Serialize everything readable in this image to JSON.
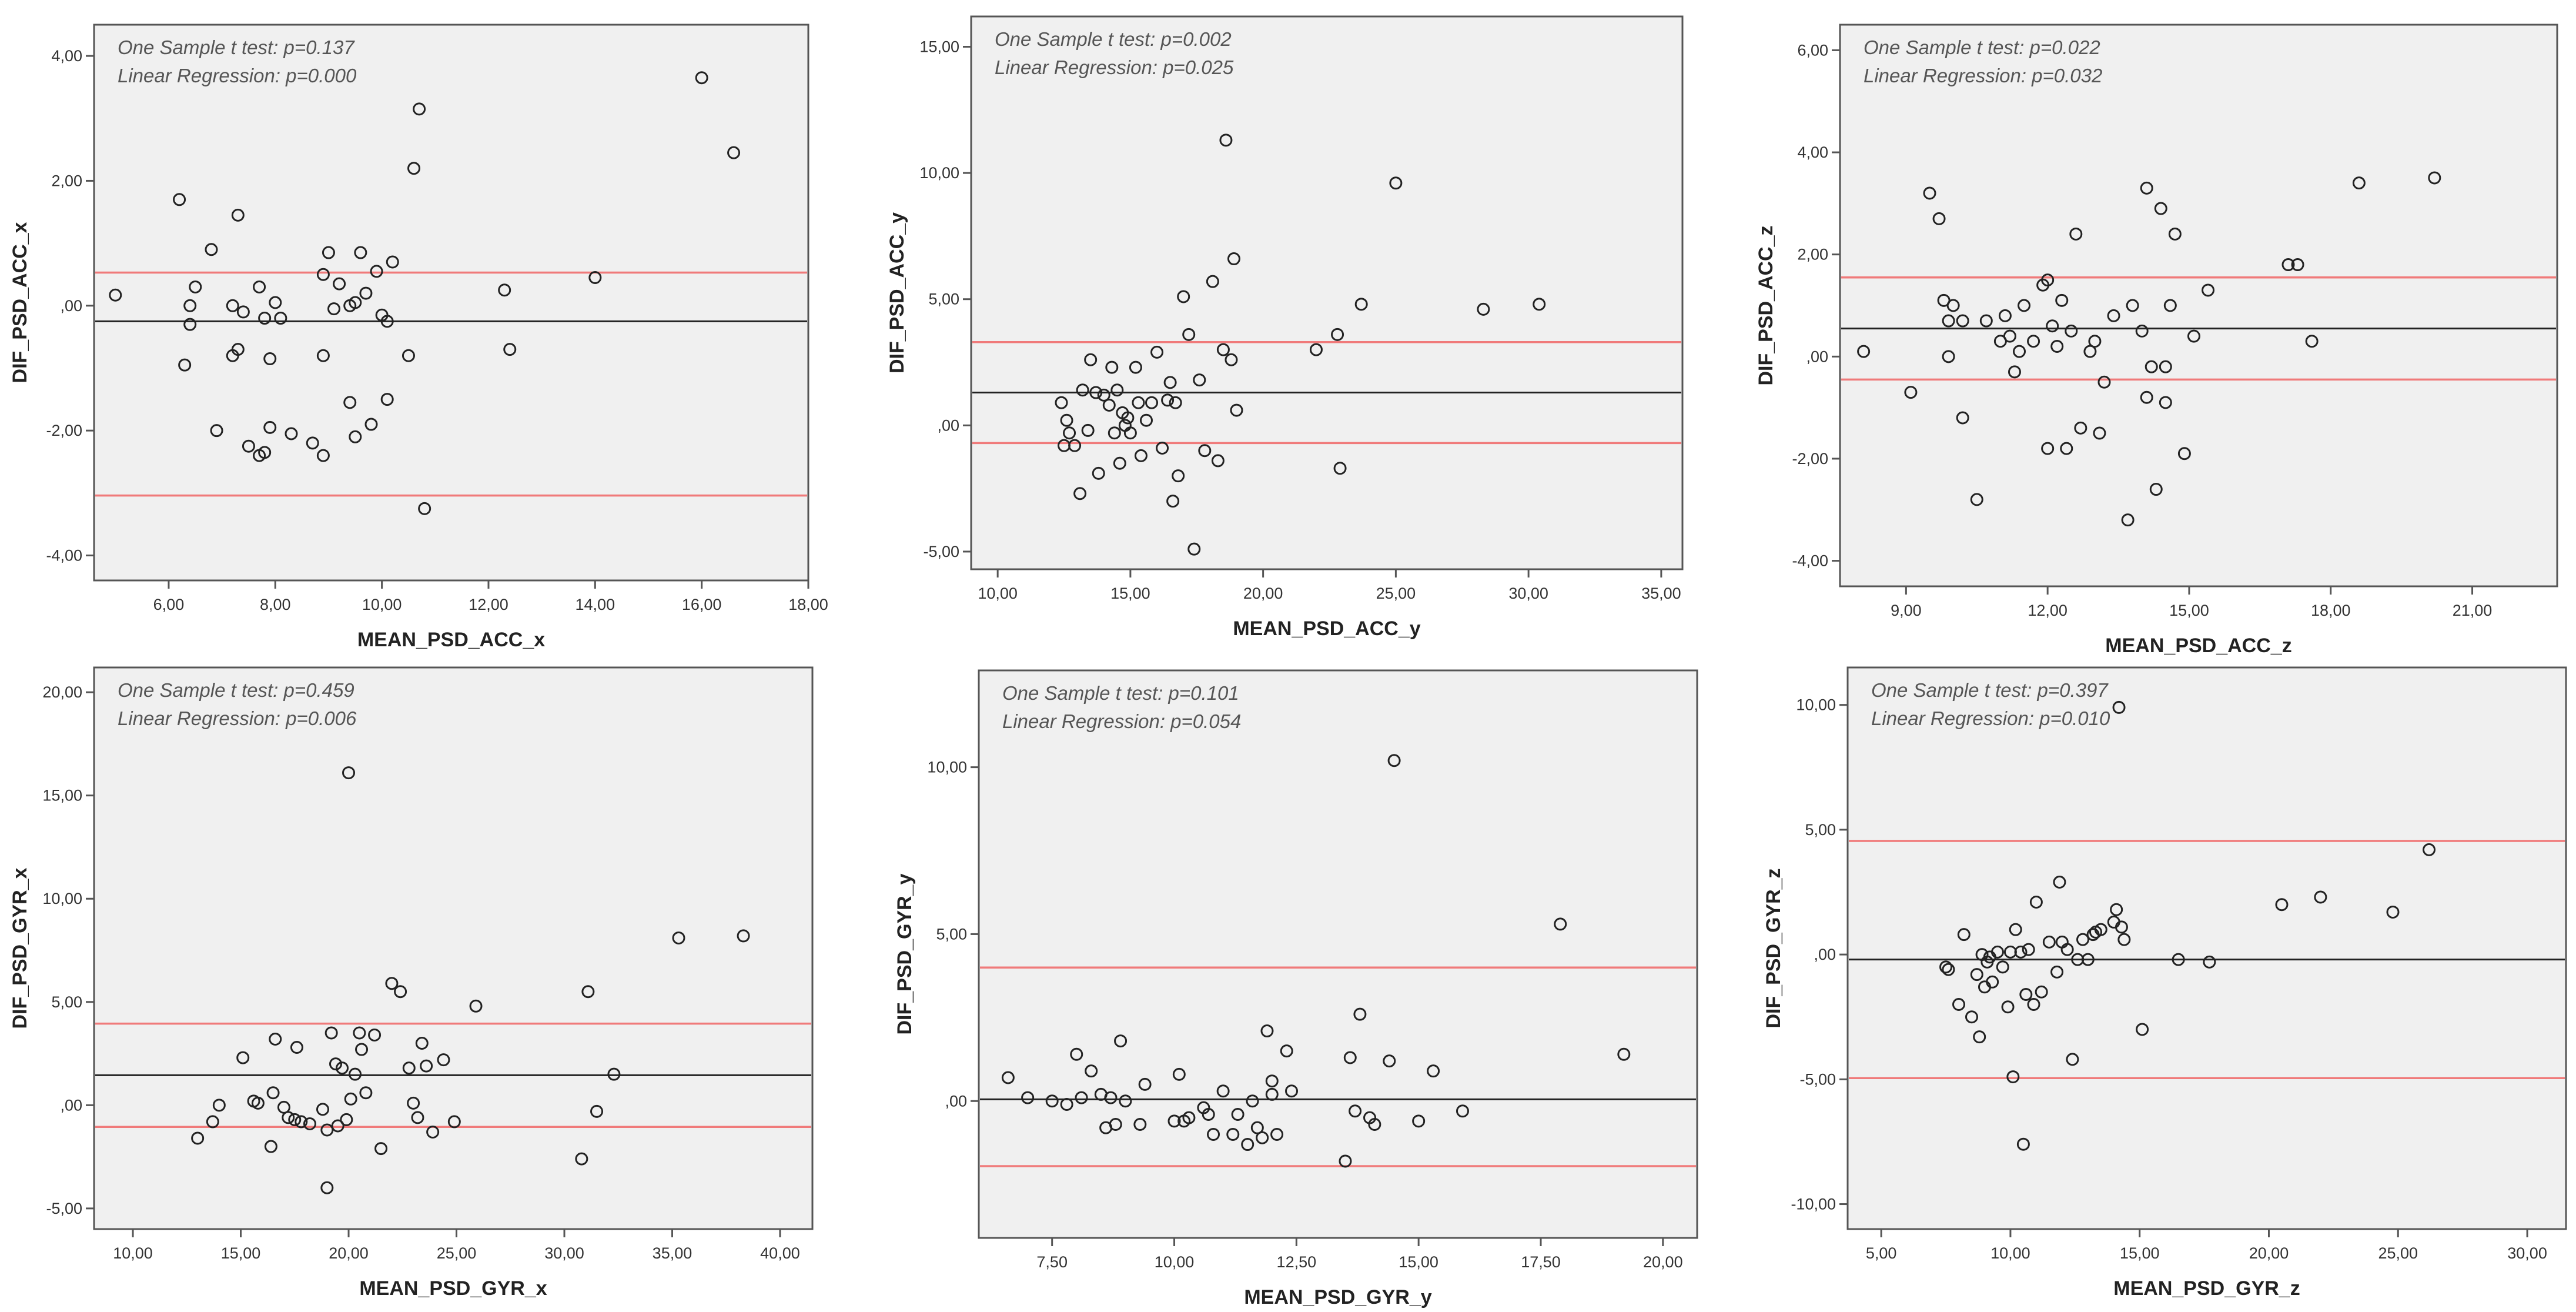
{
  "chart_data": [
    {
      "type": "scatter",
      "xlabel": "MEAN_PSD_ACC_x",
      "ylabel": "DIF_PSD_ACC_x",
      "xlim": [
        4.6,
        18.0
      ],
      "ylim": [
        -4.4,
        4.5
      ],
      "xticks": [
        6,
        8,
        10,
        12,
        14,
        16,
        18
      ],
      "xtick_labels": [
        "6,00",
        "8,00",
        "10,00",
        "12,00",
        "14,00",
        "16,00",
        "18,00"
      ],
      "yticks": [
        -4,
        -2,
        0,
        2,
        4
      ],
      "ytick_labels": [
        "-4,00",
        "-2,00",
        ",00",
        "2,00",
        "4,00"
      ],
      "annotations": [
        "One Sample t test: p=0.137",
        "Linear Regression: p=0.000"
      ],
      "mean_line": -0.25,
      "limits": [
        0.53,
        -3.04
      ],
      "x": [
        5.0,
        6.2,
        6.3,
        6.4,
        6.4,
        6.5,
        6.8,
        6.9,
        7.2,
        7.2,
        7.3,
        7.3,
        7.4,
        7.5,
        7.7,
        7.7,
        7.8,
        7.8,
        7.9,
        7.9,
        8.0,
        8.1,
        8.3,
        8.7,
        8.9,
        8.9,
        8.9,
        9.0,
        9.1,
        9.2,
        9.4,
        9.4,
        9.5,
        9.5,
        9.6,
        9.7,
        9.8,
        9.9,
        10.0,
        10.1,
        10.1,
        10.2,
        10.5,
        10.6,
        10.7,
        10.8,
        12.3,
        12.4,
        14.0,
        16.0,
        16.6
      ],
      "y": [
        0.17,
        1.7,
        -0.95,
        0.0,
        -0.3,
        0.3,
        0.9,
        -2.0,
        0.0,
        -0.8,
        -0.7,
        1.45,
        -0.1,
        -2.25,
        0.3,
        -2.4,
        -0.2,
        -2.35,
        -0.85,
        -1.95,
        0.05,
        -0.2,
        -2.05,
        -2.2,
        0.5,
        -0.8,
        -2.4,
        0.85,
        -0.05,
        0.35,
        0.0,
        -1.55,
        0.05,
        -2.1,
        0.85,
        0.2,
        -1.9,
        0.55,
        -0.15,
        -1.5,
        -0.25,
        0.7,
        -0.8,
        2.2,
        3.15,
        -3.25,
        0.25,
        -0.7,
        0.45,
        3.65,
        2.45
      ]
    },
    {
      "type": "scatter",
      "xlabel": "MEAN_PSD_ACC_y",
      "ylabel": "DIF_PSD_ACC_y",
      "xlim": [
        9.0,
        35.8
      ],
      "ylim": [
        -5.7,
        16.2
      ],
      "xticks": [
        10,
        15,
        20,
        25,
        30,
        35
      ],
      "xtick_labels": [
        "10,00",
        "15,00",
        "20,00",
        "25,00",
        "30,00",
        "35,00"
      ],
      "yticks": [
        -5,
        0,
        5,
        10,
        15
      ],
      "ytick_labels": [
        "-5,00",
        ",00",
        "5,00",
        "10,00",
        "15,00"
      ],
      "annotations": [
        "One Sample t test: p=0.002",
        "Linear Regression: p=0.025"
      ],
      "mean_line": 1.3,
      "limits": [
        3.3,
        -0.7
      ],
      "x": [
        12.4,
        12.5,
        12.6,
        12.7,
        12.9,
        13.1,
        13.2,
        13.4,
        13.5,
        13.7,
        13.8,
        14.0,
        14.2,
        14.3,
        14.4,
        14.5,
        14.6,
        14.7,
        14.8,
        14.9,
        15.0,
        15.2,
        15.3,
        15.4,
        15.6,
        15.8,
        16.0,
        16.2,
        16.4,
        16.5,
        16.6,
        16.7,
        16.8,
        17.0,
        17.2,
        17.4,
        17.6,
        17.8,
        18.1,
        18.3,
        18.5,
        18.6,
        18.8,
        18.9,
        19.0,
        22.0,
        22.8,
        22.9,
        23.7,
        25.0,
        28.3,
        30.4
      ],
      "y": [
        0.9,
        -0.8,
        0.2,
        -0.3,
        -0.8,
        -2.7,
        1.4,
        -0.2,
        2.6,
        1.3,
        -1.9,
        1.2,
        0.8,
        2.3,
        -0.3,
        1.4,
        -1.5,
        0.5,
        0.0,
        0.3,
        -0.3,
        2.3,
        0.9,
        -1.2,
        0.2,
        0.9,
        2.9,
        -0.9,
        1.0,
        1.7,
        -3.0,
        0.9,
        -2.0,
        5.1,
        3.6,
        -4.9,
        1.8,
        -1.0,
        5.7,
        -1.4,
        3.0,
        11.3,
        2.6,
        6.6,
        0.6,
        3.0,
        3.6,
        -1.7,
        4.8,
        9.6,
        4.6,
        4.8
      ]
    },
    {
      "type": "scatter",
      "xlabel": "MEAN_PSD_ACC_z",
      "ylabel": "DIF_PSD_ACC_z",
      "xlim": [
        7.6,
        22.8
      ],
      "ylim": [
        -4.5,
        6.5
      ],
      "xticks": [
        9,
        12,
        15,
        18,
        21
      ],
      "xtick_labels": [
        "9,00",
        "12,00",
        "15,00",
        "18,00",
        "21,00"
      ],
      "yticks": [
        -4,
        -2,
        0,
        2,
        4,
        6
      ],
      "ytick_labels": [
        "-4,00",
        "-2,00",
        ",00",
        "2,00",
        "4,00",
        "6,00"
      ],
      "annotations": [
        "One Sample t test: p=0.022",
        "Linear Regression: p=0.032"
      ],
      "mean_line": 0.55,
      "limits": [
        1.55,
        -0.45
      ],
      "x": [
        8.1,
        9.1,
        9.5,
        9.7,
        9.8,
        9.9,
        9.9,
        10.0,
        10.2,
        10.2,
        10.5,
        10.7,
        11.0,
        11.1,
        11.2,
        11.3,
        11.4,
        11.5,
        11.7,
        11.9,
        12.0,
        12.0,
        12.1,
        12.2,
        12.3,
        12.4,
        12.5,
        12.6,
        12.7,
        12.9,
        13.0,
        13.1,
        13.2,
        13.4,
        13.7,
        13.8,
        14.0,
        14.1,
        14.1,
        14.2,
        14.3,
        14.4,
        14.5,
        14.5,
        14.6,
        14.7,
        14.9,
        15.1,
        15.4,
        17.1,
        17.3,
        17.6,
        18.6,
        20.2
      ],
      "y": [
        0.1,
        -0.7,
        3.2,
        2.7,
        1.1,
        0.0,
        0.7,
        1.0,
        0.7,
        -1.2,
        -2.8,
        0.7,
        0.3,
        0.8,
        0.4,
        -0.3,
        0.1,
        1.0,
        0.3,
        1.4,
        1.5,
        -1.8,
        0.6,
        0.2,
        1.1,
        -1.8,
        0.5,
        2.4,
        -1.4,
        0.1,
        0.3,
        -1.5,
        -0.5,
        0.8,
        -3.2,
        1.0,
        0.5,
        3.3,
        -0.8,
        -0.2,
        -2.6,
        2.9,
        -0.2,
        -0.9,
        1.0,
        2.4,
        -1.9,
        0.4,
        1.3,
        1.8,
        1.8,
        0.3,
        3.4,
        3.5
      ]
    },
    {
      "type": "scatter",
      "xlabel": "MEAN_PSD_GYR_x",
      "ylabel": "DIF_PSD_GYR_x",
      "xlim": [
        8.2,
        41.5
      ],
      "ylim": [
        -6.0,
        21.2
      ],
      "xticks": [
        10,
        15,
        20,
        25,
        30,
        35,
        40
      ],
      "xtick_labels": [
        "10,00",
        "15,00",
        "20,00",
        "25,00",
        "30,00",
        "35,00",
        "40,00"
      ],
      "yticks": [
        -5,
        0,
        5,
        10,
        15,
        20
      ],
      "ytick_labels": [
        "-5,00",
        ",00",
        "5,00",
        "10,00",
        "15,00",
        "20,00"
      ],
      "annotations": [
        "One Sample t test: p=0.459",
        "Linear Regression: p=0.006"
      ],
      "mean_line": 1.45,
      "limits": [
        3.95,
        -1.05
      ],
      "x": [
        13.0,
        13.7,
        14.0,
        15.1,
        15.6,
        15.8,
        16.4,
        16.5,
        16.6,
        17.0,
        17.2,
        17.5,
        17.6,
        17.8,
        18.2,
        18.8,
        19.0,
        19.0,
        19.2,
        19.4,
        19.5,
        19.7,
        19.9,
        20.0,
        20.1,
        20.3,
        20.5,
        20.6,
        20.8,
        21.2,
        21.5,
        22.0,
        22.4,
        22.8,
        23.0,
        23.2,
        23.4,
        23.6,
        23.9,
        24.4,
        24.9,
        25.9,
        30.8,
        31.1,
        31.5,
        32.3,
        35.3,
        38.3
      ],
      "y": [
        -1.6,
        -0.8,
        0.0,
        2.3,
        0.2,
        0.1,
        -2.0,
        0.6,
        3.2,
        -0.1,
        -0.6,
        -0.7,
        2.8,
        -0.8,
        -0.9,
        -0.2,
        -4.0,
        -1.2,
        3.5,
        2.0,
        -1.0,
        1.8,
        -0.7,
        16.1,
        0.3,
        1.5,
        3.5,
        2.7,
        0.6,
        3.4,
        -2.1,
        5.9,
        5.5,
        1.8,
        0.1,
        -0.6,
        3.0,
        1.9,
        -1.3,
        2.2,
        -0.8,
        4.8,
        -2.6,
        5.5,
        -0.3,
        1.5,
        8.1,
        8.2
      ]
    },
    {
      "type": "scatter",
      "xlabel": "MEAN_PSD_GYR_y",
      "ylabel": "DIF_PSD_GYR_y",
      "xlim": [
        6.0,
        20.7
      ],
      "ylim": [
        -4.1,
        12.9
      ],
      "xticks": [
        7.5,
        10,
        12.5,
        15,
        17.5,
        20
      ],
      "xtick_labels": [
        "7,50",
        "10,00",
        "12,50",
        "15,00",
        "17,50",
        "20,00"
      ],
      "yticks": [
        0,
        5,
        10
      ],
      "ytick_labels": [
        ",00",
        "5,00",
        "10,00"
      ],
      "annotations": [
        "One Sample t test: p=0.101",
        "Linear Regression: p=0.054"
      ],
      "mean_line": 0.05,
      "limits": [
        4.0,
        -1.95
      ],
      "x": [
        6.6,
        7.0,
        7.5,
        7.8,
        8.0,
        8.1,
        8.3,
        8.5,
        8.6,
        8.7,
        8.8,
        8.9,
        9.0,
        9.3,
        9.4,
        10.0,
        10.1,
        10.2,
        10.3,
        10.6,
        10.7,
        10.8,
        11.0,
        11.2,
        11.3,
        11.5,
        11.6,
        11.7,
        11.8,
        11.9,
        12.0,
        12.0,
        12.1,
        12.3,
        12.4,
        13.5,
        13.6,
        13.7,
        13.8,
        14.0,
        14.1,
        14.4,
        14.5,
        15.0,
        15.3,
        15.9,
        17.9,
        19.2
      ],
      "y": [
        0.7,
        0.1,
        0.0,
        -0.1,
        1.4,
        0.1,
        0.9,
        0.2,
        -0.8,
        0.1,
        -0.7,
        1.8,
        0.0,
        -0.7,
        0.5,
        -0.6,
        0.8,
        -0.6,
        -0.5,
        -0.2,
        -0.4,
        -1.0,
        0.3,
        -1.0,
        -0.4,
        -1.3,
        0.0,
        -0.8,
        -1.1,
        2.1,
        0.2,
        0.6,
        -1.0,
        1.5,
        0.3,
        -1.8,
        1.3,
        -0.3,
        2.6,
        -0.5,
        -0.7,
        1.2,
        10.2,
        -0.6,
        0.9,
        -0.3,
        5.3,
        1.4
      ]
    },
    {
      "type": "scatter",
      "xlabel": "MEAN_PSD_GYR_z",
      "ylabel": "DIF_PSD_GYR_z",
      "xlim": [
        3.7,
        31.5
      ],
      "ylim": [
        -11.0,
        11.5
      ],
      "xticks": [
        5,
        10,
        15,
        20,
        25,
        30
      ],
      "xtick_labels": [
        "5,00",
        "10,00",
        "15,00",
        "20,00",
        "25,00",
        "30,00"
      ],
      "yticks": [
        -10,
        -5,
        0,
        5,
        10
      ],
      "ytick_labels": [
        "-10,00",
        "-5,00",
        ",00",
        "5,00",
        "10,00"
      ],
      "annotations": [
        "One Sample t test: p=0.397",
        "Linear Regression: p=0.010"
      ],
      "mean_line": -0.2,
      "limits": [
        4.55,
        -4.95
      ],
      "x": [
        7.5,
        7.6,
        8.0,
        8.2,
        8.5,
        8.7,
        8.8,
        8.9,
        9.0,
        9.1,
        9.2,
        9.3,
        9.5,
        9.7,
        9.9,
        10.0,
        10.1,
        10.2,
        10.4,
        10.5,
        10.6,
        10.7,
        10.9,
        11.0,
        11.2,
        11.5,
        11.8,
        11.9,
        12.0,
        12.2,
        12.4,
        12.6,
        12.8,
        13.0,
        13.2,
        13.3,
        13.5,
        14.0,
        14.1,
        14.2,
        14.3,
        14.4,
        15.1,
        16.5,
        17.7,
        20.5,
        22.0,
        24.8,
        26.2
      ],
      "y": [
        -0.5,
        -0.6,
        -2.0,
        0.8,
        -2.5,
        -0.8,
        -3.3,
        0.0,
        -1.3,
        -0.3,
        -0.1,
        -1.1,
        0.1,
        -0.5,
        -2.1,
        0.1,
        -4.9,
        1.0,
        0.1,
        -7.6,
        -1.6,
        0.2,
        -2.0,
        2.1,
        -1.5,
        0.5,
        -0.7,
        2.9,
        0.5,
        0.2,
        -4.2,
        -0.2,
        0.6,
        -0.2,
        0.8,
        0.9,
        1.0,
        1.3,
        1.8,
        9.9,
        1.1,
        0.6,
        -3.0,
        -0.2,
        -0.3,
        2.0,
        2.3,
        1.7,
        4.2
      ]
    }
  ]
}
